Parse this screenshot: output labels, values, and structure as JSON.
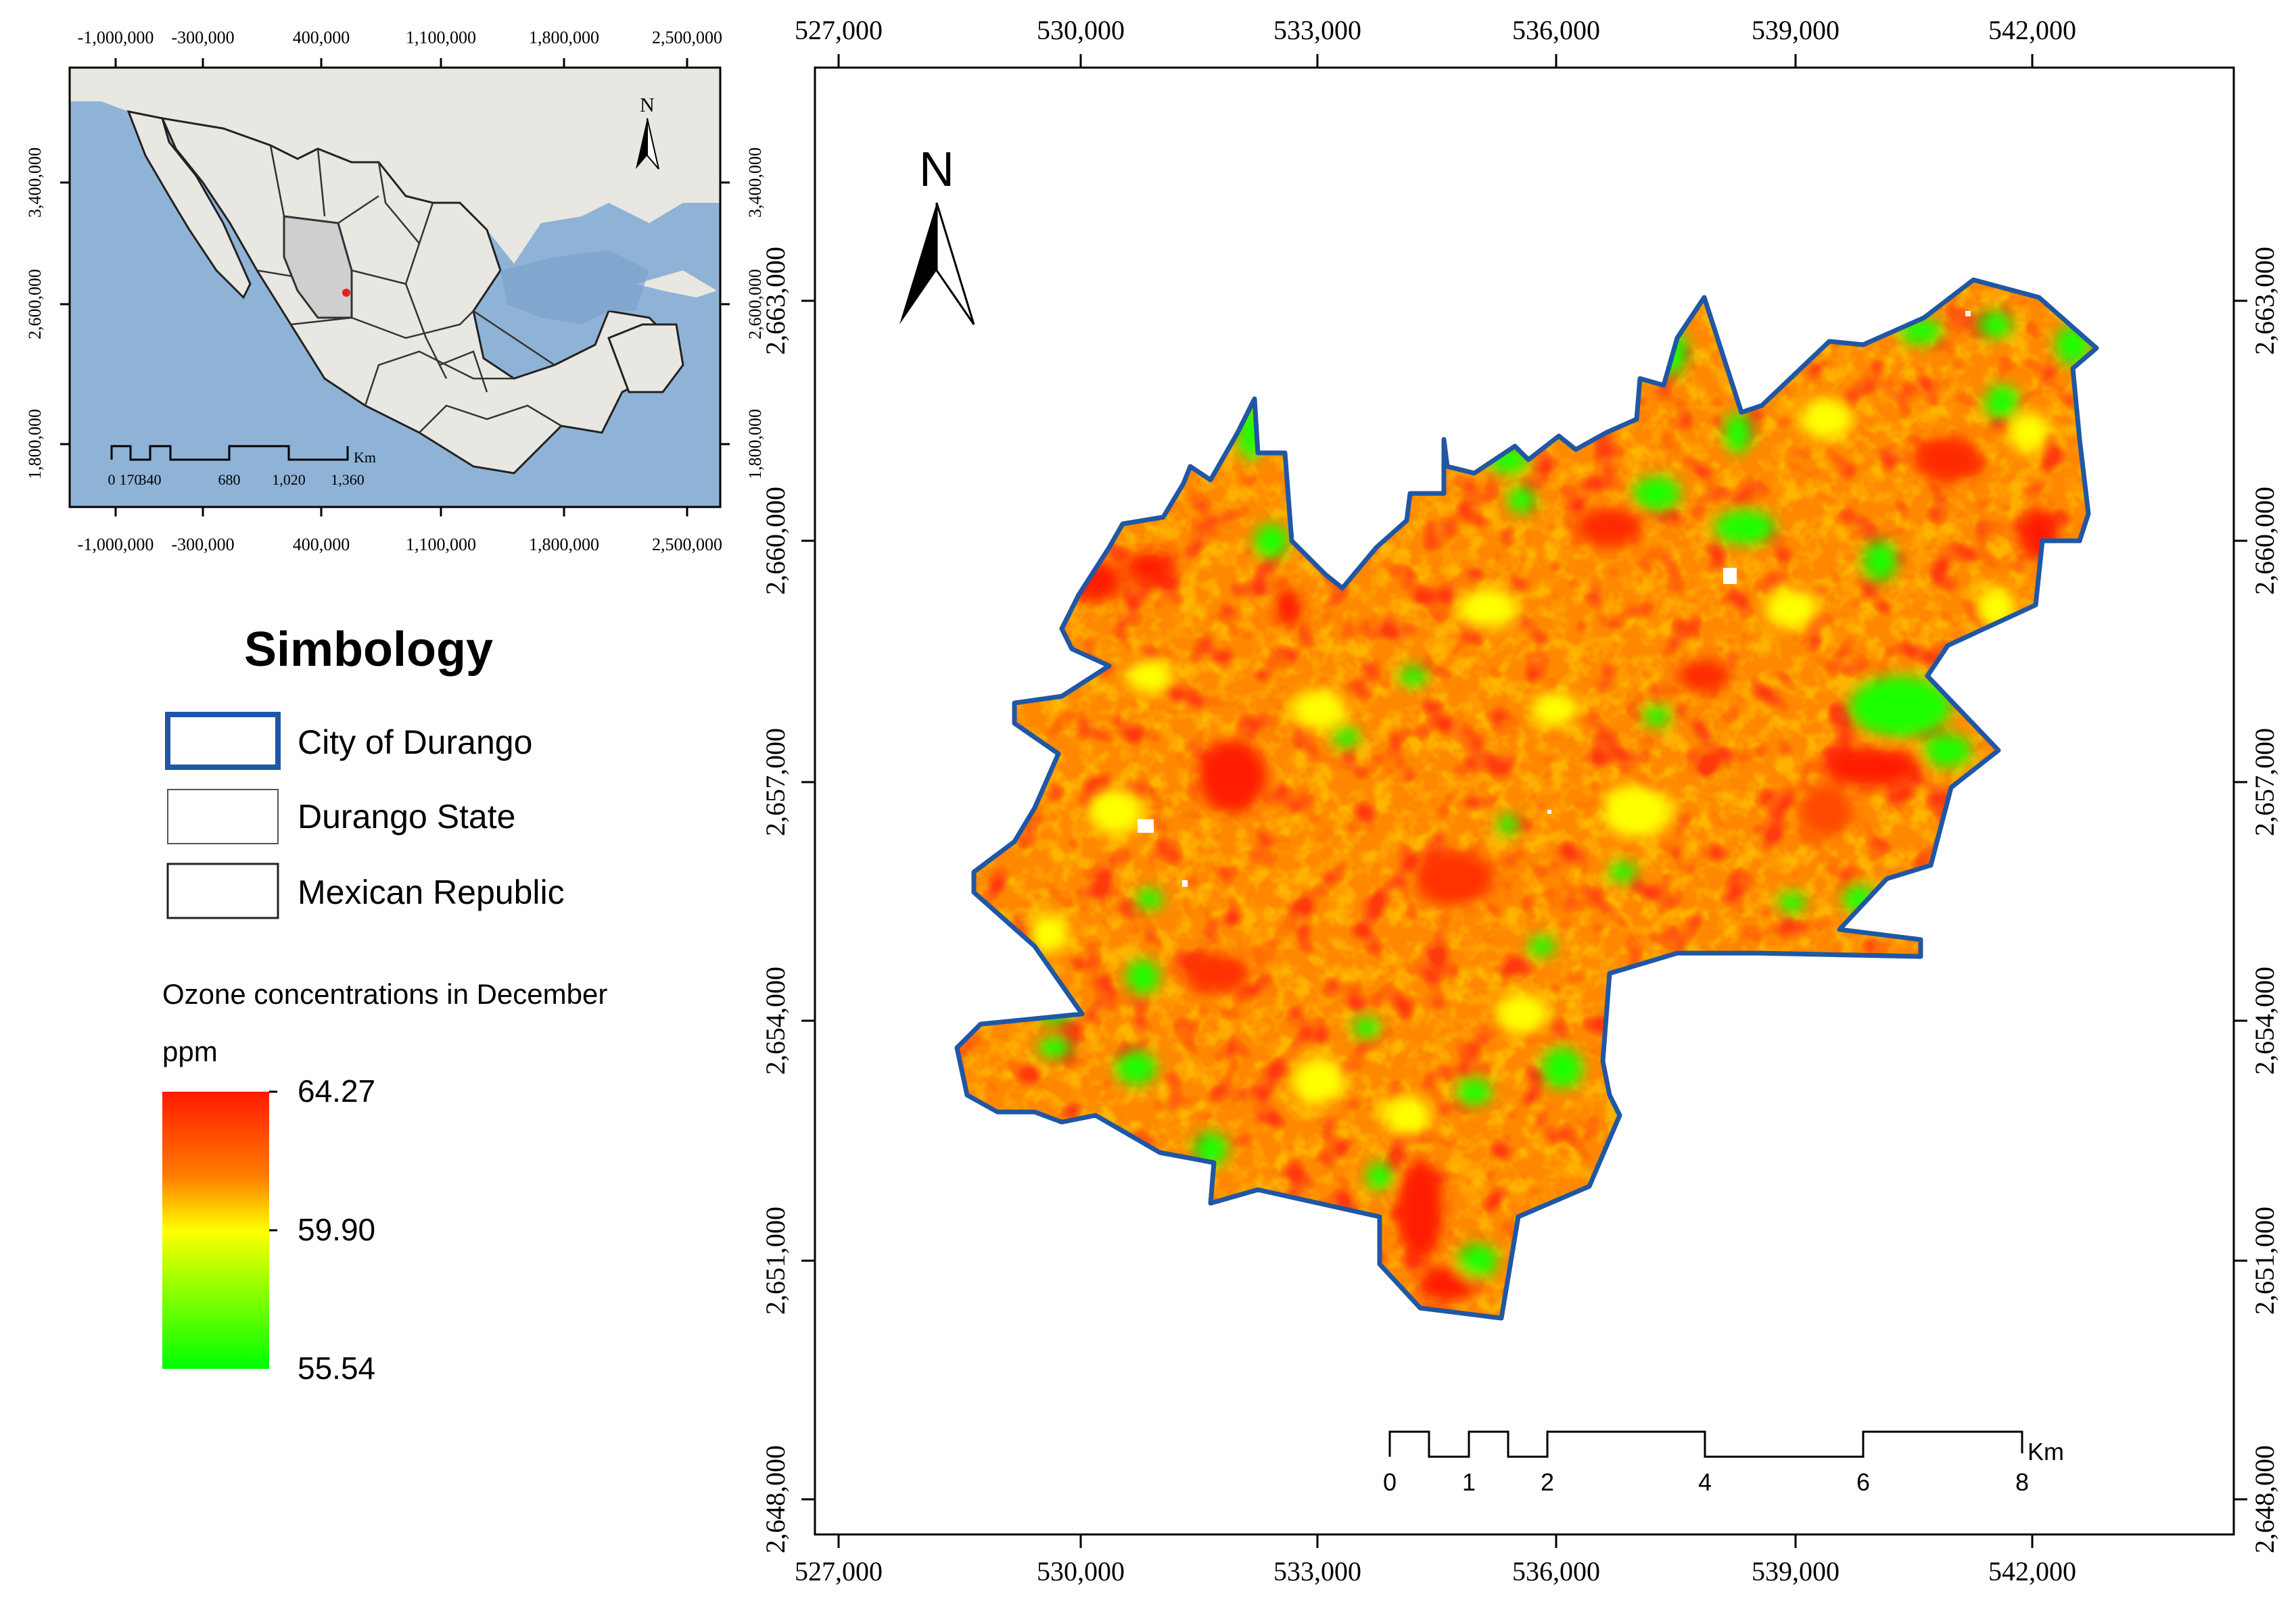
{
  "inset_map": {
    "x_ticks": [
      "-1,000,000",
      "-300,000",
      "400,000",
      "1,100,000",
      "1,800,000",
      "2,500,000"
    ],
    "y_ticks": [
      "3,400,000",
      "2,600,000",
      "1,800,000"
    ],
    "north_label": "N",
    "scale_labels": [
      "0",
      "170",
      "340",
      "680",
      "1,020",
      "1,360"
    ],
    "scale_unit": "Km",
    "colors": {
      "ocean": "#8fb3d6",
      "land": "#e9e7e1",
      "durango_state": "#cfcfcf",
      "city_point": "#e8201c"
    }
  },
  "legend": {
    "title": "Simbology",
    "items": [
      {
        "label": "City of Durango",
        "color": "#1f57a4"
      },
      {
        "label": "Durango State",
        "color": "#555555"
      },
      {
        "label": "Mexican Republic",
        "color": "#222222"
      }
    ],
    "ramp_title": "Ozone concentrations in December",
    "ramp_unit": "ppm",
    "ramp_values": [
      "64.27",
      "59.90",
      "55.54"
    ],
    "ramp_colors": [
      "#ff1a00",
      "#ff8c00",
      "#ffff00",
      "#00ff00"
    ]
  },
  "main_map": {
    "x_ticks": [
      "527,000",
      "530,000",
      "533,000",
      "536,000",
      "539,000",
      "542,000"
    ],
    "y_ticks": [
      "2,663,000",
      "2,660,000",
      "2,657,000",
      "2,654,000",
      "2,651,000",
      "2,648,000"
    ],
    "north_label": "N",
    "scale_labels": [
      "0",
      "1",
      "2",
      "4",
      "6",
      "8"
    ],
    "scale_unit": "Km",
    "boundary_color": "#1f57a4"
  }
}
